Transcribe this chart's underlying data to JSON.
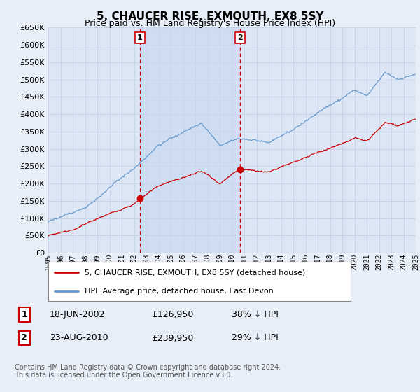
{
  "title": "5, CHAUCER RISE, EXMOUTH, EX8 5SY",
  "subtitle": "Price paid vs. HM Land Registry's House Price Index (HPI)",
  "background_color": "#e8eef7",
  "plot_bg_color": "#dce6f5",
  "grid_color": "#c8d4e8",
  "shade_color": "#c5d8f0",
  "hpi_color": "#6699cc",
  "price_color": "#cc0000",
  "vline_color": "#cc0000",
  "ylim": [
    0,
    650000
  ],
  "yticks": [
    0,
    50000,
    100000,
    150000,
    200000,
    250000,
    300000,
    350000,
    400000,
    450000,
    500000,
    550000,
    600000,
    650000
  ],
  "legend_label_price": "5, CHAUCER RISE, EXMOUTH, EX8 5SY (detached house)",
  "legend_label_hpi": "HPI: Average price, detached house, East Devon",
  "transaction1_date": "18-JUN-2002",
  "transaction1_price": "£126,950",
  "transaction1_hpi": "38% ↓ HPI",
  "transaction1_year": 2002.46,
  "transaction2_date": "23-AUG-2010",
  "transaction2_price": "£239,950",
  "transaction2_hpi": "29% ↓ HPI",
  "transaction2_year": 2010.64,
  "footer": "Contains HM Land Registry data © Crown copyright and database right 2024.\nThis data is licensed under the Open Government Licence v3.0.",
  "sale1_value": 126950,
  "sale2_value": 239950
}
